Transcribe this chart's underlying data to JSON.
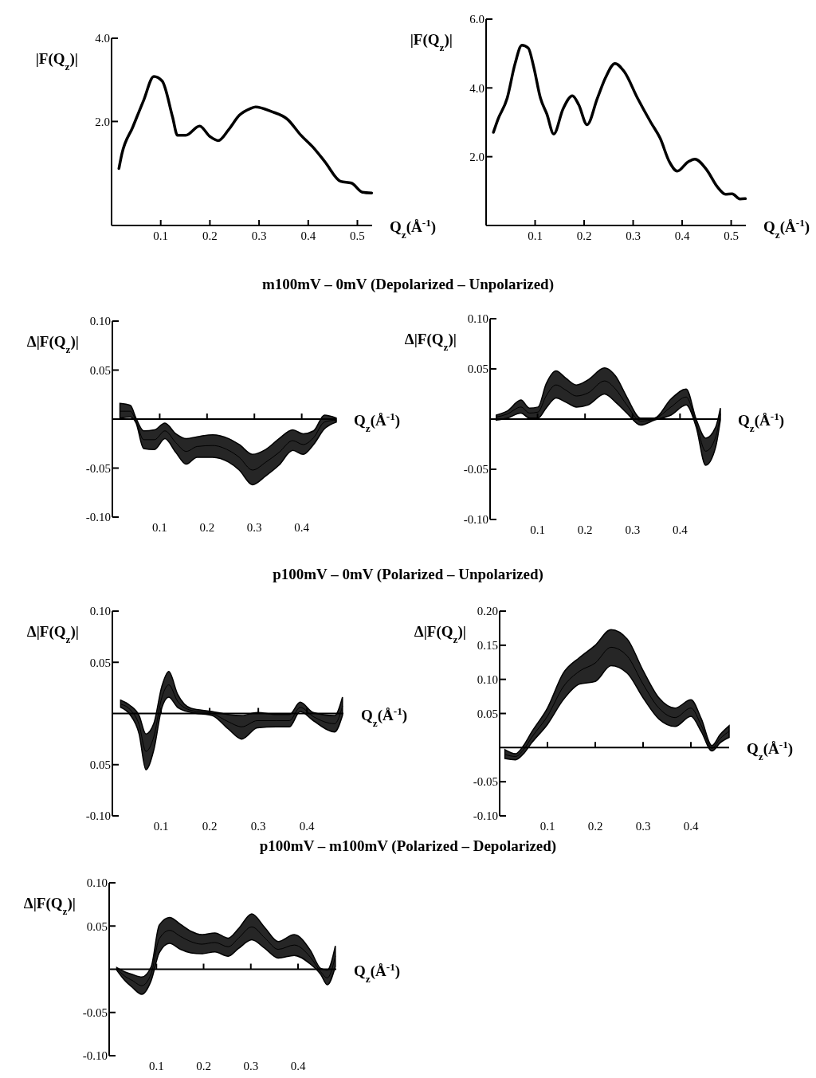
{
  "chart_data": [
    {
      "type": "line",
      "ylabel": "|F(Q$_{z}$)|",
      "xlabel": "Q$_{z}$(Å$^{-1}$)",
      "xlim": [
        0,
        0.53
      ],
      "xticks": [
        0.1,
        0.2,
        0.3,
        0.4,
        0.5
      ],
      "ylim": [
        -0.5,
        4.0
      ],
      "yticks": [
        {
          "value": 2,
          "label": "2.0"
        },
        {
          "value": 4,
          "label": "4.0"
        }
      ],
      "series": [
        {
          "color": "#000000",
          "x": [
            0.015,
            0.021,
            0.043,
            0.065,
            0.086,
            0.103,
            0.124,
            0.134,
            0.151,
            0.179,
            0.2,
            0.217,
            0.238,
            0.26,
            0.282,
            0.293,
            0.325,
            0.358,
            0.385,
            0.412,
            0.434,
            0.466,
            0.488,
            0.51,
            0.529
          ],
          "values": [
            0.87,
            1.22,
            1.86,
            2.5,
            3.08,
            2.97,
            2.11,
            1.67,
            1.67,
            1.89,
            1.64,
            1.54,
            1.8,
            2.15,
            2.31,
            2.35,
            2.24,
            2.05,
            1.67,
            1.35,
            1.03,
            0.56,
            0.52,
            0.3,
            0.28
          ]
        }
      ]
    },
    {
      "type": "line",
      "ylabel": "|F(Q$_{z}$)|",
      "xlabel": "Q$_{z}$(Å$^{-1}$)",
      "xlim": [
        0,
        0.53
      ],
      "xticks": [
        0.1,
        0.2,
        0.3,
        0.4,
        0.5
      ],
      "ylim": [
        0,
        6.0
      ],
      "yticks": [
        {
          "value": 2,
          "label": "2.0"
        },
        {
          "value": 4,
          "label": "4.0"
        },
        {
          "value": 6,
          "label": "6.0"
        }
      ],
      "series": [
        {
          "color": "#000000",
          "x": [
            0.015,
            0.024,
            0.043,
            0.059,
            0.073,
            0.086,
            0.097,
            0.111,
            0.124,
            0.138,
            0.157,
            0.176,
            0.189,
            0.206,
            0.227,
            0.244,
            0.263,
            0.282,
            0.309,
            0.336,
            0.355,
            0.374,
            0.39,
            0.412,
            0.426,
            0.45,
            0.472,
            0.488,
            0.502,
            0.518,
            0.529
          ],
          "values": [
            2.71,
            3.08,
            3.7,
            4.7,
            5.24,
            5.16,
            4.62,
            3.7,
            3.24,
            2.66,
            3.39,
            3.77,
            3.51,
            2.93,
            3.7,
            4.31,
            4.71,
            4.47,
            3.7,
            3.0,
            2.54,
            1.85,
            1.58,
            1.85,
            1.93,
            1.62,
            1.12,
            0.91,
            0.92,
            0.77,
            0.78
          ]
        }
      ]
    },
    {
      "type": "line",
      "title": "m100mV – 0mV (Depolarized – Unpolarized)",
      "ylabel": "Δ|F(Q$_{z}$)|",
      "xlabel": "Q$_{z}$(Å$^{-1}$)",
      "xlim": [
        0,
        0.473
      ],
      "xticks": [
        0.1,
        0.2,
        0.3,
        0.4
      ],
      "ylim": [
        -0.1,
        0.1
      ],
      "yticks": [
        {
          "value": -0.1,
          "label": "-0.10"
        },
        -0.05,
        0.05,
        {
          "value": 0.1,
          "label": "0.10"
        }
      ],
      "series": [
        {
          "color": "#000000",
          "x": [
            0.016,
            0.038,
            0.05,
            0.066,
            0.089,
            0.111,
            0.134,
            0.156,
            0.179,
            0.212,
            0.246,
            0.268,
            0.296,
            0.324,
            0.352,
            0.381,
            0.403,
            0.425,
            0.448,
            0.473
          ],
          "values": [
            0.008,
            0.008,
            -0.002,
            -0.021,
            -0.021,
            -0.012,
            -0.024,
            -0.033,
            -0.028,
            -0.027,
            -0.032,
            -0.039,
            -0.052,
            -0.044,
            -0.034,
            -0.022,
            -0.026,
            -0.019,
            -0.003,
            -0.001
          ],
          "upper": [
            0.016,
            0.014,
            0.001,
            -0.012,
            -0.011,
            -0.004,
            -0.015,
            -0.02,
            -0.018,
            -0.016,
            -0.02,
            -0.026,
            -0.036,
            -0.031,
            -0.02,
            -0.011,
            -0.015,
            -0.012,
            0.004,
            0.001
          ],
          "lower": [
            0.001,
            0.002,
            -0.004,
            -0.03,
            -0.031,
            -0.02,
            -0.034,
            -0.046,
            -0.039,
            -0.039,
            -0.044,
            -0.052,
            -0.067,
            -0.058,
            -0.047,
            -0.032,
            -0.036,
            -0.026,
            -0.01,
            -0.003
          ]
        }
      ]
    },
    {
      "type": "line",
      "ylabel": "Δ|F(Q$_{z}$)|",
      "xlabel": "Q$_{z}$(Å$^{-1}$)",
      "xlim": [
        0,
        0.485
      ],
      "xticks": [
        0.1,
        0.2,
        0.3,
        0.4
      ],
      "ylim": [
        -0.1,
        0.1
      ],
      "yticks": [
        {
          "value": -0.1,
          "label": "-0.10"
        },
        -0.05,
        0.05,
        {
          "value": 0.1,
          "label": "0.10"
        }
      ],
      "series": [
        {
          "color": "#000000",
          "x": [
            0.013,
            0.036,
            0.065,
            0.083,
            0.101,
            0.118,
            0.139,
            0.159,
            0.182,
            0.206,
            0.241,
            0.264,
            0.288,
            0.317,
            0.346,
            0.381,
            0.413,
            0.434,
            0.454,
            0.475,
            0.485
          ],
          "values": [
            0.002,
            0.005,
            0.012,
            0.006,
            0.007,
            0.023,
            0.034,
            0.029,
            0.023,
            0.026,
            0.038,
            0.03,
            0.014,
            -0.002,
            0,
            0.012,
            0.022,
            -0.004,
            -0.032,
            -0.018,
            0.005
          ],
          "upper": [
            0.004,
            0.008,
            0.019,
            0.011,
            0.012,
            0.035,
            0.048,
            0.041,
            0.034,
            0.039,
            0.051,
            0.043,
            0.022,
            0.001,
            0.001,
            0.02,
            0.03,
            0,
            -0.019,
            -0.008,
            0.011
          ],
          "lower": [
            -0.001,
            0.001,
            0.006,
            0.001,
            0.001,
            0.011,
            0.021,
            0.017,
            0.012,
            0.014,
            0.025,
            0.017,
            0.006,
            -0.006,
            -0.001,
            0.004,
            0.014,
            -0.008,
            -0.046,
            -0.028,
            -0.001
          ]
        }
      ]
    },
    {
      "type": "line",
      "title": "p100mV – 0mV (Polarized – Unpolarized)",
      "ylabel": "Δ|F(Q$_{z}$)|",
      "xlabel": "Q$_{z}$(Å$^{-1}$)",
      "xlim": [
        0,
        0.475
      ],
      "xticks": [
        0.1,
        0.2,
        0.3,
        0.4
      ],
      "ylim": [
        -0.1,
        0.1
      ],
      "yticks": [
        {
          "value": -0.1,
          "label": "-0.10"
        },
        {
          "value": -0.05,
          "label": "0.05"
        },
        0.05,
        {
          "value": 0.1,
          "label": "0.10"
        }
      ],
      "series": [
        {
          "color": "#000000",
          "x": [
            0.017,
            0.036,
            0.055,
            0.069,
            0.085,
            0.102,
            0.116,
            0.134,
            0.162,
            0.205,
            0.238,
            0.266,
            0.298,
            0.337,
            0.364,
            0.386,
            0.413,
            0.457,
            0.473
          ],
          "values": [
            0.009,
            0.004,
            -0.011,
            -0.037,
            -0.023,
            0.016,
            0.028,
            0.012,
            0.003,
            0,
            -0.008,
            -0.013,
            -0.007,
            -0.007,
            -0.007,
            0.006,
            -0.003,
            -0.01,
            0.007
          ],
          "upper": [
            0.013,
            0.008,
            -0.002,
            -0.02,
            -0.01,
            0.027,
            0.041,
            0.019,
            0.005,
            0.002,
            -0.001,
            -0.002,
            0.001,
            -0.001,
            -0.001,
            0.011,
            0.001,
            -0.002,
            0.016
          ],
          "lower": [
            0.006,
            -0.001,
            -0.02,
            -0.055,
            -0.036,
            0.006,
            0.016,
            0.006,
            0.001,
            -0.002,
            -0.015,
            -0.025,
            -0.014,
            -0.013,
            -0.013,
            0.002,
            -0.007,
            -0.018,
            -0.002
          ]
        }
      ]
    },
    {
      "type": "line",
      "ylabel": "Δ|F(Q$_{z}$)|",
      "xlabel": "Q$_{z}$(Å$^{-1}$)",
      "xlim": [
        0,
        0.48
      ],
      "xticks": [
        0.1,
        0.2,
        0.3,
        0.4
      ],
      "ylim": [
        -0.1,
        0.2
      ],
      "yticks": [
        {
          "value": -0.1,
          "label": "-0.10"
        },
        -0.05,
        0.05,
        {
          "value": 0.1,
          "label": "0.10"
        },
        0.15,
        {
          "value": 0.2,
          "label": "0.20"
        }
      ],
      "series": [
        {
          "color": "#000000",
          "x": [
            0.011,
            0.033,
            0.05,
            0.067,
            0.1,
            0.133,
            0.167,
            0.2,
            0.233,
            0.267,
            0.3,
            0.333,
            0.367,
            0.4,
            0.422,
            0.444,
            0.461,
            0.48
          ],
          "values": [
            -0.01,
            -0.013,
            -0.003,
            0.015,
            0.046,
            0.089,
            0.112,
            0.124,
            0.147,
            0.134,
            0.093,
            0.058,
            0.044,
            0.058,
            0.032,
            -0.001,
            0.013,
            0.024
          ],
          "upper": [
            -0.003,
            -0.009,
            0.003,
            0.023,
            0.058,
            0.109,
            0.132,
            0.15,
            0.173,
            0.159,
            0.113,
            0.073,
            0.058,
            0.07,
            0.042,
            0.003,
            0.019,
            0.032
          ],
          "lower": [
            -0.016,
            -0.018,
            -0.009,
            0.007,
            0.034,
            0.07,
            0.093,
            0.097,
            0.12,
            0.109,
            0.073,
            0.042,
            0.031,
            0.046,
            0.023,
            -0.005,
            0.007,
            0.015
          ]
        }
      ]
    },
    {
      "type": "line",
      "title": "p100mV – m100mV (Polarized – Depolarized)",
      "ylabel": "Δ|F(Q$_{z}$)|",
      "xlabel": "Q$_{z}$(Å$^{-1}$)",
      "xlim": [
        0,
        0.481
      ],
      "xticks": [
        0.1,
        0.2,
        0.3,
        0.4
      ],
      "ylim": [
        -0.1,
        0.1
      ],
      "yticks": [
        {
          "value": -0.1,
          "label": "-0.10"
        },
        -0.05,
        0.05,
        {
          "value": 0.1,
          "label": "0.10"
        }
      ],
      "series": [
        {
          "color": "#000000",
          "x": [
            0.016,
            0.033,
            0.049,
            0.069,
            0.089,
            0.106,
            0.128,
            0.151,
            0.173,
            0.196,
            0.224,
            0.252,
            0.274,
            0.302,
            0.33,
            0.358,
            0.392,
            0.426,
            0.448,
            0.462,
            0.479
          ],
          "values": [
            0.001,
            -0.008,
            -0.013,
            -0.019,
            -0.005,
            0.035,
            0.045,
            0.038,
            0.032,
            0.029,
            0.031,
            0.026,
            0.036,
            0.049,
            0.036,
            0.023,
            0.028,
            0.014,
            -0.003,
            -0.01,
            0.015
          ],
          "upper": [
            0.002,
            -0.003,
            -0.006,
            -0.009,
            0.003,
            0.051,
            0.06,
            0.052,
            0.044,
            0.04,
            0.042,
            0.036,
            0.047,
            0.064,
            0.048,
            0.032,
            0.04,
            0.022,
            0.001,
            -0.001,
            0.027
          ],
          "lower": [
            -0.001,
            -0.013,
            -0.021,
            -0.029,
            -0.013,
            0.019,
            0.03,
            0.023,
            0.019,
            0.018,
            0.02,
            0.015,
            0.024,
            0.034,
            0.024,
            0.013,
            0.016,
            0.006,
            -0.006,
            -0.018,
            0.003
          ]
        }
      ]
    }
  ]
}
